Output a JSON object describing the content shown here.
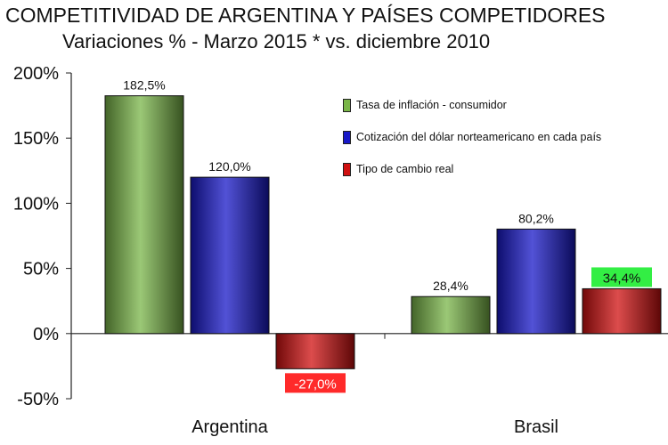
{
  "chart_data": {
    "type": "bar",
    "title": "COMPETITIVIDAD DE ARGENTINA Y PAÍSES COMPETIDORES",
    "subtitle": "Variaciones % - Marzo 2015 * vs. diciembre 2010",
    "categories": [
      "Argentina",
      "Brasil"
    ],
    "series": [
      {
        "name": "Tasa de inflación - consumidor",
        "values": [
          182.5,
          28.4
        ],
        "labels": [
          "182,5%",
          "28,4%"
        ],
        "color": "#7ab648"
      },
      {
        "name": "Cotización del dólar norteamericano  en cada país",
        "values": [
          120.0,
          80.2
        ],
        "labels": [
          "120,0%",
          "80,2%"
        ],
        "color": "#1818c8"
      },
      {
        "name": "Tipo de cambio  real",
        "values": [
          -27.0,
          34.4
        ],
        "labels": [
          "-27,0%",
          "34,4%"
        ],
        "color": "#d01010"
      }
    ],
    "highlighted_labels": {
      "Argentina-Tipo de cambio  real": "#ff2a2a",
      "Brasil-Tipo de cambio  real": "#33ee44"
    },
    "y_ticks": [
      "200%",
      "150%",
      "100%",
      "50%",
      "0%",
      "-50%"
    ],
    "y_tick_values": [
      200,
      150,
      100,
      50,
      0,
      -50
    ],
    "ylim": [
      -50,
      200
    ],
    "grid": false,
    "legend_position": "top-right"
  }
}
